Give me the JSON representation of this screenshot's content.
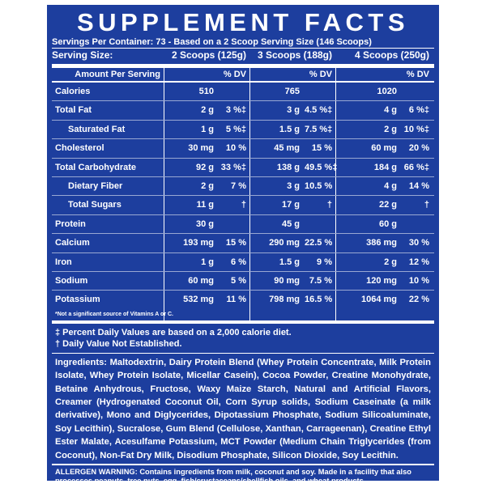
{
  "title": "SUPPLEMENT FACTS",
  "servings_per_container": "Servings Per Container: 73 - Based on a 2 Scoop Serving Size (146 Scoops)",
  "serving_size": {
    "label": "Serving Size:",
    "cols": [
      "2 Scoops (125g)",
      "3 Scoops (188g)",
      "4 Scoops (250g)"
    ]
  },
  "table": {
    "header": {
      "amount_per_serving": "Amount Per Serving",
      "dv": "% DV"
    },
    "rows": [
      {
        "label": "Calories",
        "c1": [
          "510",
          ""
        ],
        "c2": [
          "765",
          ""
        ],
        "c3": [
          "1020",
          ""
        ]
      },
      {
        "label": "Total Fat",
        "c1": [
          "2 g",
          "3 %‡"
        ],
        "c2": [
          "3 g",
          "4.5 %‡"
        ],
        "c3": [
          "4 g",
          "6 %‡"
        ]
      },
      {
        "label": "Saturated Fat",
        "c1": [
          "1 g",
          "5 %‡"
        ],
        "c2": [
          "1.5 g",
          "7.5 %‡"
        ],
        "c3": [
          "2 g",
          "10 %‡"
        ]
      },
      {
        "label": "Cholesterol",
        "c1": [
          "30 mg",
          "10 %"
        ],
        "c2": [
          "45 mg",
          "15 %"
        ],
        "c3": [
          "60 mg",
          "20 %"
        ]
      },
      {
        "label": "Total Carbohydrate",
        "c1": [
          "92 g",
          "33 %‡"
        ],
        "c2": [
          "138 g",
          "49.5 %‡"
        ],
        "c3": [
          "184 g",
          "66 %‡"
        ]
      },
      {
        "label": "Dietary Fiber",
        "c1": [
          "2 g",
          "7 %"
        ],
        "c2": [
          "3 g",
          "10.5 %"
        ],
        "c3": [
          "4 g",
          "14 %"
        ]
      },
      {
        "label": "Total Sugars",
        "c1": [
          "11 g",
          "†"
        ],
        "c2": [
          "17 g",
          "†"
        ],
        "c3": [
          "22 g",
          "†"
        ]
      },
      {
        "label": "Protein",
        "c1": [
          "30 g",
          ""
        ],
        "c2": [
          "45 g",
          ""
        ],
        "c3": [
          "60 g",
          ""
        ]
      },
      {
        "label": "Calcium",
        "c1": [
          "193 mg",
          "15 %"
        ],
        "c2": [
          "290 mg",
          "22.5 %"
        ],
        "c3": [
          "386 mg",
          "30 %"
        ]
      },
      {
        "label": "Iron",
        "c1": [
          "1 g",
          "6 %"
        ],
        "c2": [
          "1.5 g",
          "9 %"
        ],
        "c3": [
          "2 g",
          "12 %"
        ]
      },
      {
        "label": "Sodium",
        "c1": [
          "60 mg",
          "5 %"
        ],
        "c2": [
          "90 mg",
          "7.5 %"
        ],
        "c3": [
          "120 mg",
          "10 %"
        ]
      },
      {
        "label": "Potassium",
        "c1": [
          "532 mg",
          "11 %"
        ],
        "c2": [
          "798 mg",
          "16.5 %"
        ],
        "c3": [
          "1064 mg",
          "22 %"
        ]
      }
    ],
    "note": "*Not a significant source of Vitamins A or C."
  },
  "footnotes": [
    "‡ Percent Daily Values are based on a 2,000 calorie diet.",
    "† Daily Value Not Established."
  ],
  "ingredients": "Ingredients: Maltodextrin, Dairy Protein Blend (Whey Protein Concentrate, Milk Protein Isolate, Whey Protein Isolate, Micellar Casein), Cocoa Powder, Creatine Monohydrate, Betaine Anhydrous, Fructose, Waxy Maize Starch, Natural and Artificial Flavors, Creamer (Hydrogenated Coconut Oil, Corn Syrup solids, Sodium Caseinate (a milk derivative), Mono and Diglycerides, Dipotassium Phosphate, Sodium Silicoaluminate, Soy Lecithin), Sucralose, Gum Blend (Cellulose, Xanthan, Carrageenan), Creatine Ethyl Ester Malate, Acesulfame Potassium, MCT Powder (Medium Chain Triglycerides (from Coconut), Non-Fat Dry Milk, Disodium Phosphate, Silicon Dioxide, Soy Lecithin.",
  "allergen": "ALLERGEN WARNING: Contains ingredients from milk, coconut and soy. Made in a facility that also processes peanuts, tree nuts, egg, fish/crustaceans/shellfish oils, and wheat products.",
  "colors": {
    "panel": "#1d3e9e",
    "text": "#ffffff"
  }
}
